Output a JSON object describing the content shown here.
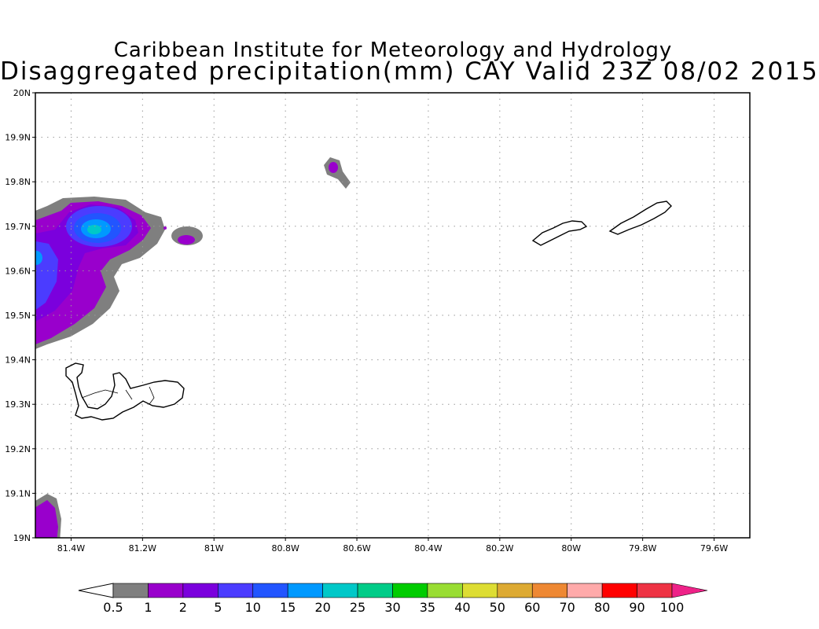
{
  "header": {
    "title_line1": "Caribbean Institute for Meteorology and Hydrology",
    "title_line2": "Disaggregated precipitation(mm) CAY Valid 23Z 08/02 2015"
  },
  "map": {
    "lon_range": [
      -81.5,
      -79.5
    ],
    "lat_range": [
      19.0,
      20.0
    ],
    "lat_ticks": [
      {
        "value": 20.0,
        "label": "20N"
      },
      {
        "value": 19.9,
        "label": "19.9N"
      },
      {
        "value": 19.8,
        "label": "19.8N"
      },
      {
        "value": 19.7,
        "label": "19.7N"
      },
      {
        "value": 19.6,
        "label": "19.6N"
      },
      {
        "value": 19.5,
        "label": "19.5N"
      },
      {
        "value": 19.4,
        "label": "19.4N"
      },
      {
        "value": 19.3,
        "label": "19.3N"
      },
      {
        "value": 19.2,
        "label": "19.2N"
      },
      {
        "value": 19.1,
        "label": "19.1N"
      },
      {
        "value": 19.0,
        "label": "19N"
      }
    ],
    "lon_ticks": [
      {
        "value": -81.4,
        "label": "81.4W"
      },
      {
        "value": -81.2,
        "label": "81.2W"
      },
      {
        "value": -81.0,
        "label": "81W"
      },
      {
        "value": -80.8,
        "label": "80.8W"
      },
      {
        "value": -80.6,
        "label": "80.6W"
      },
      {
        "value": -80.4,
        "label": "80.4W"
      },
      {
        "value": -80.2,
        "label": "80.2W"
      },
      {
        "value": -80.0,
        "label": "80W"
      },
      {
        "value": -79.8,
        "label": "79.8W"
      },
      {
        "value": -79.6,
        "label": "79.6W"
      }
    ],
    "grid": "dotted"
  },
  "colorbar": {
    "labels": [
      "0.5",
      "1",
      "2",
      "5",
      "10",
      "15",
      "20",
      "25",
      "30",
      "35",
      "40",
      "50",
      "60",
      "70",
      "80",
      "90",
      "100"
    ],
    "colors": [
      "#7f7f7f",
      "#9900cc",
      "#7b00dd",
      "#4b3cff",
      "#2255ff",
      "#0099ff",
      "#00c8c8",
      "#00cc88",
      "#00cc00",
      "#99dd33",
      "#dddd33",
      "#ddaa33",
      "#ee8833",
      "#ffaaaa",
      "#ff0000",
      "#ee3344"
    ],
    "low_end_color": "#ffffff",
    "high_end_color": "#ee2288"
  },
  "colors": {
    "land_outline": "#000000",
    "gray_contour": "#7f7f7f"
  }
}
